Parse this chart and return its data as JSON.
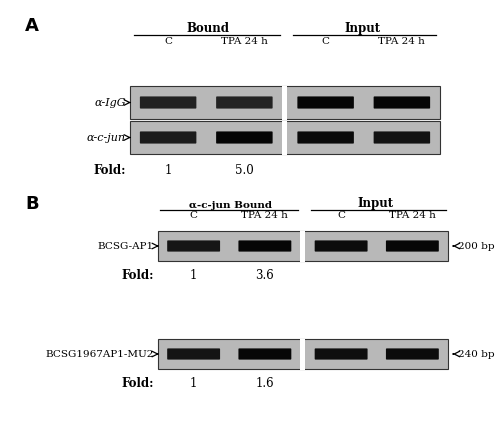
{
  "gel_bg": 0.72,
  "gel_bg_darker": 0.62,
  "panel_A": {
    "label": "A",
    "bound_label": "Bound",
    "input_label": "Input",
    "col_labels": [
      "C",
      "TPA 24 h",
      "C",
      "TPA 24 h"
    ],
    "row_labels": [
      "α-IgG",
      "α-c-jun"
    ],
    "fold_label": "Fold:",
    "fold_values": [
      "1",
      "5.0"
    ],
    "igg_bands": [
      0.15,
      0.1,
      0.88,
      0.88
    ],
    "cjun_bands": [
      0.3,
      0.92,
      0.78,
      0.55
    ]
  },
  "panel_B": {
    "label": "B",
    "bound_label": "α-c-jun Bound",
    "input_label": "Input",
    "col_labels": [
      "C",
      "TPA 24 h",
      "C",
      "TPA 24 h"
    ],
    "row1_label": "BCSG-AP1",
    "row2_label": "BCSG1967AP1-MU2",
    "fold_label": "Fold:",
    "fold_values_1": [
      "1",
      "3.6"
    ],
    "fold_values_2": [
      "1",
      "1.6"
    ],
    "size_label_1": "200 bp",
    "size_label_2": "240 bp",
    "ap1_bands": [
      0.45,
      0.9,
      0.72,
      0.85
    ],
    "mu2_bands": [
      0.5,
      0.85,
      0.68,
      0.75
    ]
  }
}
